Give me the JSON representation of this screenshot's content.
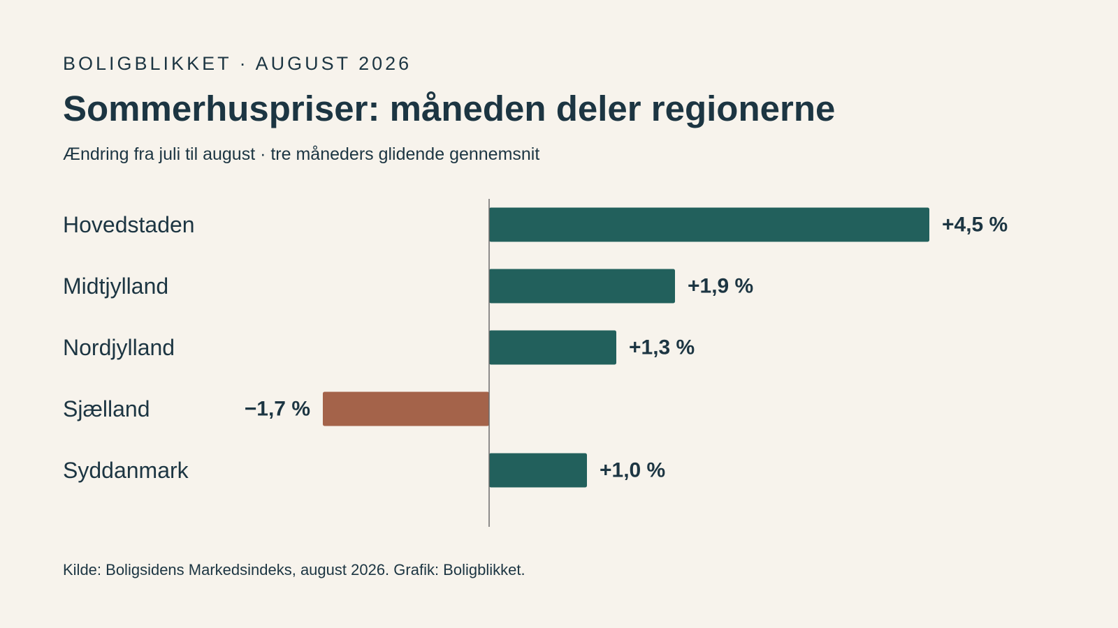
{
  "header": {
    "kicker": "BOLIGBLIKKET · AUGUST 2026",
    "title": "Sommerhuspriser: måneden deler regionerne",
    "subtitle": "Ændring fra juli til august · tre måneders glidende gennemsnit"
  },
  "footer": {
    "source": "Kilde: Boligsidens Markedsindeks, august 2026. Grafik: Boligblikket."
  },
  "colors": {
    "positive": "#22605c",
    "negative": "#a4634a",
    "text": "#1c3542",
    "axis": "#6b6b6b",
    "background": "#f7f3ec"
  },
  "chart_data": {
    "type": "bar",
    "orientation": "horizontal",
    "title": "Sommerhuspriser: måneden deler regionerne",
    "subtitle": "Ændring fra juli til august · tre måneders glidende gennemsnit",
    "categories": [
      "Hovedstaden",
      "Midtjylland",
      "Nordjylland",
      "Sjælland",
      "Syddanmark"
    ],
    "values": [
      4.5,
      1.9,
      1.3,
      -1.7,
      1.0
    ],
    "value_labels": [
      "+4,5 %",
      "+1,9 %",
      "+1,3 %",
      "−1,7 %",
      "+1,0 %"
    ],
    "unit": "%",
    "xlim": [
      -5,
      4.5
    ],
    "grid": false,
    "legend": "none"
  }
}
